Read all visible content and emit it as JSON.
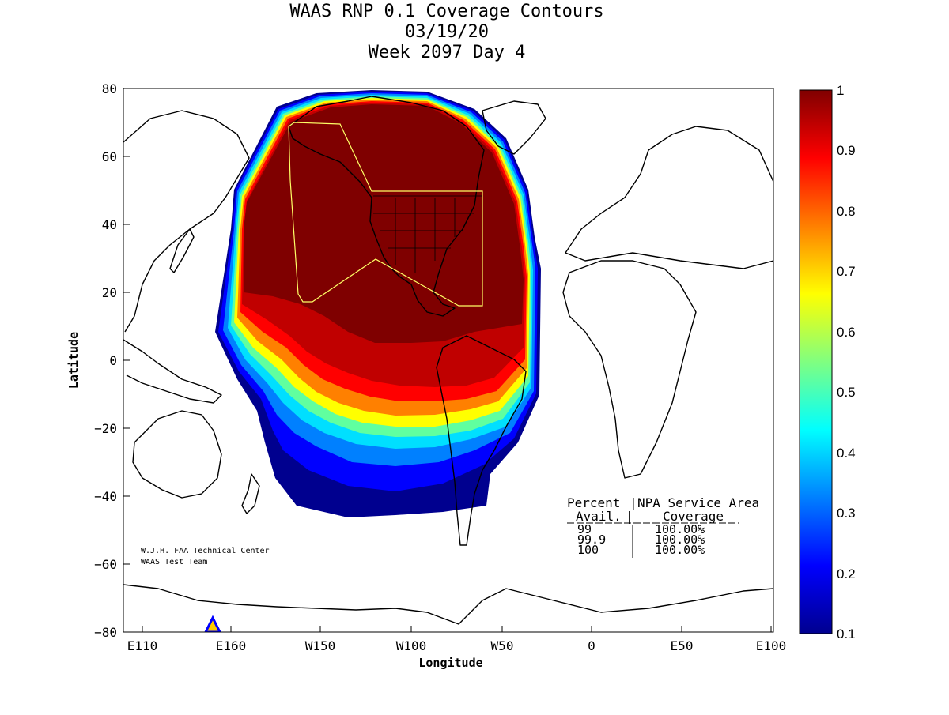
{
  "title_lines": [
    "WAAS RNP 0.1 Coverage Contours",
    "03/19/20",
    "Week 2097 Day 4"
  ],
  "chart_data": {
    "type": "heatmap",
    "xlabel": "Longitude",
    "ylabel": "Latitude",
    "x_tick_labels": [
      "E110",
      "E160",
      "W150",
      "W100",
      "W50",
      "0",
      "E50",
      "E100"
    ],
    "y_tick_labels": [
      "80",
      "60",
      "40",
      "20",
      "0",
      "−20",
      "−40",
      "−60",
      "−80"
    ],
    "ylim": [
      -80,
      80
    ],
    "colorbar": {
      "min": 0.1,
      "max": 1,
      "tick_labels": [
        "1",
        "0.9",
        "0.8",
        "0.7",
        "0.6",
        "0.5",
        "0.4",
        "0.3",
        "0.2",
        "0.1"
      ]
    },
    "table": {
      "header_row1": [
        "Percent",
        "NPA Service Area"
      ],
      "header_row2": [
        "Avail.",
        "Coverage"
      ],
      "rows": [
        [
          "99",
          "100.00%"
        ],
        [
          "99.9",
          "100.00%"
        ],
        [
          "100",
          "100.00%"
        ]
      ]
    },
    "credits": [
      "W.J.H. FAA Technical Center",
      "WAAS Test Team"
    ]
  },
  "colors": {
    "dark_red": "#7f0000",
    "red": "#ff0000",
    "orange": "#ff8000",
    "yellow": "#ffff00",
    "cyan": "#00ffff",
    "blue": "#0000ff",
    "dark_blue": "#00008f",
    "outline": "#000000",
    "service_area": "#ffff66"
  }
}
